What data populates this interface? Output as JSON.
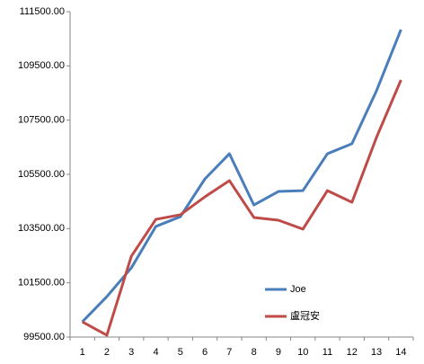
{
  "chart_data": {
    "type": "line",
    "categories": [
      "1",
      "2",
      "3",
      "4",
      "5",
      "6",
      "7",
      "8",
      "9",
      "10",
      "11",
      "12",
      "13",
      "14"
    ],
    "series": [
      {
        "name": "Joe",
        "color": "#4a7ebb",
        "values": [
          100060,
          100990,
          102050,
          103580,
          103940,
          105330,
          106260,
          104370,
          104870,
          104900,
          106260,
          106630,
          108580,
          110840
        ]
      },
      {
        "name": "盧冠安",
        "color": "#be4b48",
        "values": [
          100060,
          99570,
          102480,
          103840,
          104010,
          104670,
          105270,
          103910,
          103810,
          103480,
          104900,
          104470,
          106860,
          108980
        ]
      }
    ],
    "ylim": [
      99500,
      111500
    ],
    "yticks": [
      {
        "value": 99500,
        "label": "99500.00"
      },
      {
        "value": 101500,
        "label": "101500.00"
      },
      {
        "value": 103500,
        "label": "103500.00"
      },
      {
        "value": 105500,
        "label": "105500.00"
      },
      {
        "value": 107500,
        "label": "107500.00"
      },
      {
        "value": 109500,
        "label": "109500.00"
      },
      {
        "value": 111500,
        "label": "111500.00"
      }
    ],
    "grid": false,
    "legend": "lower-right"
  }
}
